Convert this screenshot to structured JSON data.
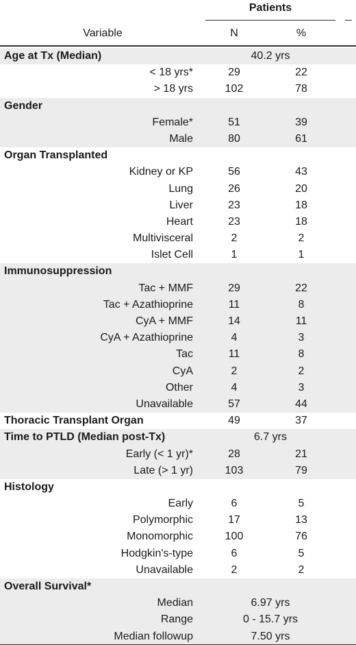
{
  "header": {
    "group_label": "Patients",
    "variable_label": "Variable",
    "n_label": "N",
    "pct_label": "%"
  },
  "rows": [
    {
      "type": "section",
      "shade": true,
      "label": "Age at Tx (Median)",
      "span": "40.2 yrs"
    },
    {
      "type": "item",
      "shade": false,
      "label": "< 18 yrs*",
      "n": "29",
      "pct": "22"
    },
    {
      "type": "item",
      "shade": false,
      "label": "> 18 yrs",
      "n": "102",
      "pct": "78"
    },
    {
      "type": "section",
      "shade": true,
      "label": "Gender"
    },
    {
      "type": "item",
      "shade": true,
      "label": "Female*",
      "n": "51",
      "pct": "39"
    },
    {
      "type": "item",
      "shade": true,
      "label": "Male",
      "n": "80",
      "pct": "61"
    },
    {
      "type": "section",
      "shade": false,
      "label": "Organ Transplanted"
    },
    {
      "type": "item",
      "shade": false,
      "label": "Kidney or KP",
      "n": "56",
      "pct": "43"
    },
    {
      "type": "item",
      "shade": false,
      "label": "Lung",
      "n": "26",
      "pct": "20"
    },
    {
      "type": "item",
      "shade": false,
      "label": "Liver",
      "n": "23",
      "pct": "18"
    },
    {
      "type": "item",
      "shade": false,
      "label": "Heart",
      "n": "23",
      "pct": "18"
    },
    {
      "type": "item",
      "shade": false,
      "label": "Multivisceral",
      "n": "2",
      "pct": "2"
    },
    {
      "type": "item",
      "shade": false,
      "label": "Islet Cell",
      "n": "1",
      "pct": "1"
    },
    {
      "type": "section",
      "shade": true,
      "label": "Immunosuppression"
    },
    {
      "type": "item",
      "shade": true,
      "label": "Tac + MMF",
      "n": "29",
      "pct": "22"
    },
    {
      "type": "item",
      "shade": true,
      "label": "Tac + Azathioprine",
      "n": "11",
      "pct": "8"
    },
    {
      "type": "item",
      "shade": true,
      "label": "CyA + MMF",
      "n": "14",
      "pct": "11"
    },
    {
      "type": "item",
      "shade": true,
      "label": "CyA + Azathioprine",
      "n": "4",
      "pct": "3"
    },
    {
      "type": "item",
      "shade": true,
      "label": "Tac",
      "n": "11",
      "pct": "8"
    },
    {
      "type": "item",
      "shade": true,
      "label": "CyA",
      "n": "2",
      "pct": "2"
    },
    {
      "type": "item",
      "shade": true,
      "label": "Other",
      "n": "4",
      "pct": "3"
    },
    {
      "type": "item",
      "shade": true,
      "label": "Unavailable",
      "n": "57",
      "pct": "44"
    },
    {
      "type": "section",
      "shade": false,
      "label": "Thoracic Transplant Organ",
      "n": "49",
      "pct": "37"
    },
    {
      "type": "section",
      "shade": true,
      "label": "Time to PTLD (Median post-Tx)",
      "span": "6.7 yrs"
    },
    {
      "type": "item",
      "shade": true,
      "label": "Early (< 1 yr)*",
      "n": "28",
      "pct": "21"
    },
    {
      "type": "item",
      "shade": true,
      "label": "Late (> 1 yr)",
      "n": "103",
      "pct": "79"
    },
    {
      "type": "section",
      "shade": false,
      "label": "Histology"
    },
    {
      "type": "item",
      "shade": false,
      "label": "Early",
      "n": "6",
      "pct": "5"
    },
    {
      "type": "item",
      "shade": false,
      "label": "Polymorphic",
      "n": "17",
      "pct": "13"
    },
    {
      "type": "item",
      "shade": false,
      "label": "Monomorphic",
      "n": "100",
      "pct": "76"
    },
    {
      "type": "item",
      "shade": false,
      "label": "Hodgkin's-type",
      "n": "6",
      "pct": "5"
    },
    {
      "type": "item",
      "shade": false,
      "label": "Unavailable",
      "n": "2",
      "pct": "2"
    },
    {
      "type": "section",
      "shade": true,
      "label": "Overall Survival*"
    },
    {
      "type": "item",
      "shade": true,
      "label": "Median",
      "span": "6.97 yrs"
    },
    {
      "type": "item",
      "shade": true,
      "label": "Range",
      "span": "0 - 15.7 yrs"
    },
    {
      "type": "item",
      "shade": true,
      "label": "Median followup",
      "span": "7.50 yrs"
    }
  ]
}
